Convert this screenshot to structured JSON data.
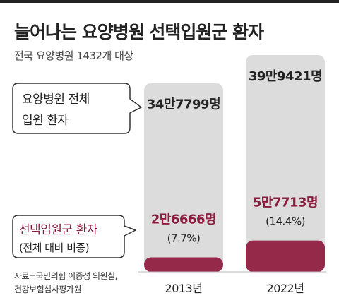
{
  "header": {
    "title": "늘어나는 요양병원 선택입원군 환자",
    "subtitle": "전국 요양병원 1432개 대상"
  },
  "legend": {
    "total_label_line1": "요양병원 전체",
    "total_label_line2": "입원 환자",
    "selective_label_line1": "선택입원군 환자",
    "selective_label_line2": "(전체 대비 비중)"
  },
  "source": {
    "line1": "자료=국민의힘 이종성 의원실,",
    "line2": "건강보험심사평가원"
  },
  "colors": {
    "total_bar": "#dcdcdc",
    "selective_bar": "#95294a",
    "selective_text": "#8c1c40",
    "text": "#222222",
    "bubble_border": "#333333"
  },
  "chart_data": {
    "type": "bar",
    "categories": [
      "2013년",
      "2022년"
    ],
    "series": [
      {
        "name": "요양병원 전체 입원 환자",
        "values": [
          347799,
          399421
        ],
        "value_labels": [
          "34만7799명",
          "39만9421명"
        ]
      },
      {
        "name": "선택입원군 환자",
        "values": [
          26666,
          57713
        ],
        "value_labels": [
          "2만6666명",
          "5만7713명"
        ],
        "share_labels": [
          "(7.7%)",
          "(14.4%)"
        ]
      }
    ],
    "title": "늘어나는 요양병원 선택입원군 환자",
    "xlabel": "",
    "ylabel": "",
    "ylim": [
      0,
      399421
    ]
  }
}
